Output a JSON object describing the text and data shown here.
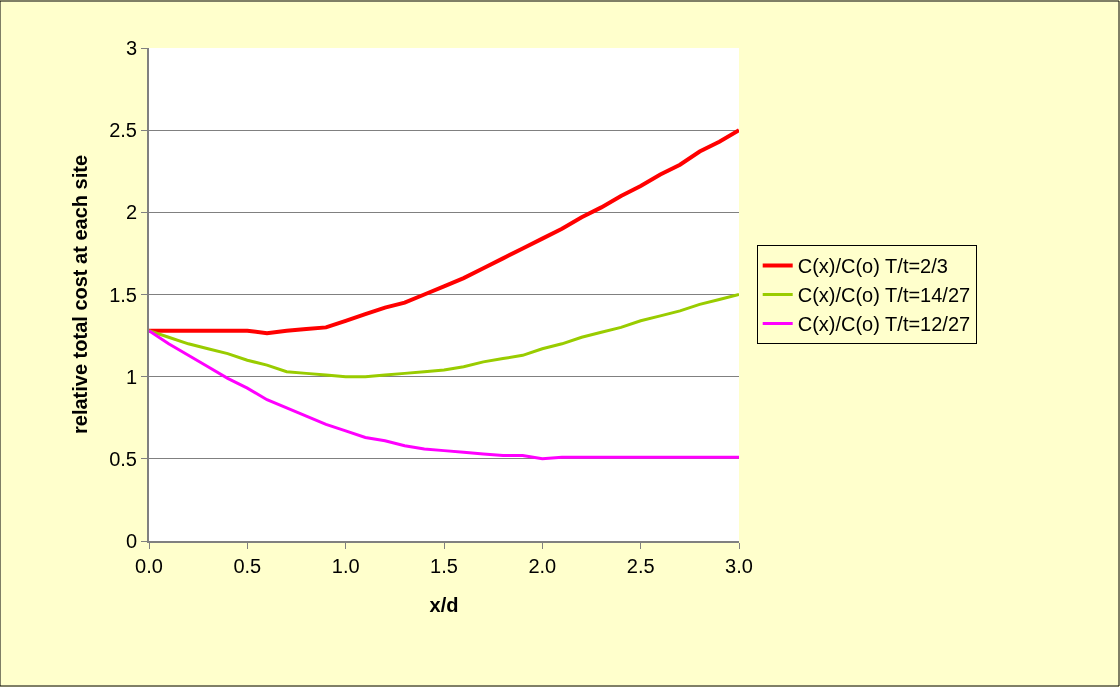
{
  "chart_data": {
    "type": "line",
    "xlabel": "x/d",
    "ylabel": "relative total cost at each site",
    "x": [
      0.0,
      0.1,
      0.2,
      0.3,
      0.4,
      0.5,
      0.6,
      0.7,
      0.8,
      0.9,
      1.0,
      1.1,
      1.2,
      1.3,
      1.4,
      1.5,
      1.6,
      1.7,
      1.8,
      1.9,
      2.0,
      2.1,
      2.2,
      2.3,
      2.4,
      2.5,
      2.6,
      2.7,
      2.8,
      2.9,
      3.0
    ],
    "series": [
      {
        "name": "C(x)/C(o) T/t=2/3",
        "color": "#ff0000",
        "values": [
          1.28,
          1.28,
          1.28,
          1.28,
          1.28,
          1.28,
          1.265,
          1.28,
          1.29,
          1.3,
          1.34,
          1.38,
          1.42,
          1.45,
          1.5,
          1.55,
          1.6,
          1.66,
          1.72,
          1.78,
          1.84,
          1.9,
          1.97,
          2.03,
          2.1,
          2.16,
          2.23,
          2.29,
          2.37,
          2.43,
          2.5
        ]
      },
      {
        "name": "C(x)/C(o) T/t=14/27",
        "color": "#99cc00",
        "values": [
          1.28,
          1.24,
          1.2,
          1.17,
          1.14,
          1.1,
          1.07,
          1.03,
          1.02,
          1.01,
          1.0,
          1.0,
          1.01,
          1.02,
          1.03,
          1.04,
          1.06,
          1.09,
          1.11,
          1.13,
          1.17,
          1.2,
          1.24,
          1.27,
          1.3,
          1.34,
          1.37,
          1.4,
          1.44,
          1.47,
          1.5
        ]
      },
      {
        "name": "C(x)/C(o) T/t=12/27",
        "color": "#ff00ff",
        "values": [
          1.28,
          1.2,
          1.13,
          1.06,
          0.99,
          0.93,
          0.86,
          0.81,
          0.76,
          0.71,
          0.67,
          0.63,
          0.61,
          0.58,
          0.56,
          0.55,
          0.54,
          0.53,
          0.52,
          0.52,
          0.5,
          0.51,
          0.51,
          0.51,
          0.51,
          0.51,
          0.51,
          0.51,
          0.51,
          0.51,
          0.51
        ]
      }
    ],
    "xlim": [
      0,
      3
    ],
    "xticks": [
      {
        "value": 0,
        "label": "0.0"
      },
      {
        "value": 0.5,
        "label": "0.5"
      },
      {
        "value": 1,
        "label": "1.0"
      },
      {
        "value": 1.5,
        "label": "1.5"
      },
      {
        "value": 2,
        "label": "2.0"
      },
      {
        "value": 2.5,
        "label": "2.5"
      },
      {
        "value": 3,
        "label": "3.0"
      }
    ],
    "ylim": [
      0,
      3
    ],
    "yticks": [
      0,
      0.5,
      1,
      1.5,
      2,
      2.5,
      3
    ],
    "grid": "y",
    "legend": "right",
    "marker": "none",
    "line_style": "solid"
  }
}
